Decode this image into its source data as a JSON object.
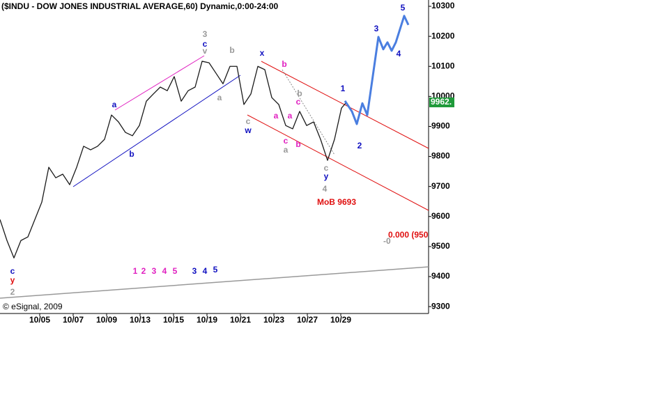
{
  "chart_data": {
    "type": "line",
    "title": "($INDU - DOW JONES INDUSTRIAL AVERAGE,60) Dynamic,0:00-24:00",
    "categories": [
      "10/05",
      "10/07",
      "10/09",
      "10/13",
      "10/15",
      "10/19",
      "10/21",
      "10/23",
      "10/27",
      "10/29"
    ],
    "xlim": [
      0,
      615
    ],
    "ylim": [
      9277,
      10321
    ],
    "yticks": [
      9300,
      9400,
      9500,
      9600,
      9700,
      9800,
      9900,
      10000,
      10100,
      10200,
      10300
    ],
    "series": [
      {
        "name": "$INDU",
        "color": "#1a1a1a",
        "x": [
          0,
          10,
          20,
          30,
          40,
          50,
          60,
          70,
          80,
          90,
          100,
          110,
          120,
          130,
          140,
          150,
          160,
          170,
          180,
          190,
          200,
          210,
          220,
          230,
          240,
          250,
          260,
          270,
          280,
          290,
          300,
          310,
          320,
          330,
          340,
          350,
          360,
          370,
          380,
          390,
          400,
          410,
          420,
          430,
          440,
          450,
          460,
          470,
          480,
          490,
          497
        ],
        "values": [
          9590,
          9520,
          9462,
          9520,
          9532,
          9590,
          9648,
          9764,
          9729,
          9741,
          9706,
          9764,
          9834,
          9822,
          9834,
          9857,
          9938,
          9915,
          9880,
          9869,
          9903,
          9984,
          10008,
          10031,
          10019,
          10066,
          9984,
          10019,
          10031,
          10117,
          10112,
          10077,
          10042,
          10100,
          10100,
          9973,
          10008,
          10100,
          10089,
          9996,
          9973,
          9903,
          9892,
          9950,
          9903,
          9915,
          9857,
          9787,
          9857,
          9961,
          9980
        ]
      },
      {
        "name": "Projection",
        "color": "#4a7ee0",
        "x": [
          495,
          505,
          512,
          520,
          527,
          543,
          550,
          556,
          562,
          568,
          580,
          586
        ],
        "values": [
          9985,
          9950,
          9908,
          9977,
          9938,
          10198,
          10157,
          10180,
          10152,
          10180,
          10268,
          10238
        ]
      }
    ],
    "last_price": "9962.",
    "annotations": [
      {
        "text": "3",
        "color": "#999999"
      },
      {
        "text": "c",
        "color": "#1010c0"
      },
      {
        "text": "v",
        "color": "#999999"
      },
      {
        "text": "b",
        "color": "#999999"
      },
      {
        "text": "x",
        "color": "#1010c0"
      },
      {
        "text": "b",
        "color": "#e020c0"
      },
      {
        "text": "a",
        "color": "#1010c0"
      },
      {
        "text": "b",
        "color": "#1010c0"
      },
      {
        "text": "a",
        "color": "#999999"
      },
      {
        "text": "b",
        "color": "#999999"
      },
      {
        "text": "c",
        "color": "#e020c0"
      },
      {
        "text": "a",
        "color": "#e020c0"
      },
      {
        "text": "a",
        "color": "#e020c0"
      },
      {
        "text": "c",
        "color": "#999999"
      },
      {
        "text": "w",
        "color": "#1010c0"
      },
      {
        "text": "c",
        "color": "#e020c0"
      },
      {
        "text": "b",
        "color": "#e020c0"
      },
      {
        "text": "a",
        "color": "#999999"
      },
      {
        "text": "c",
        "color": "#999999"
      },
      {
        "text": "y",
        "color": "#1010c0"
      },
      {
        "text": "4",
        "color": "#999999"
      },
      {
        "text": "MoB 9693",
        "color": "#e01010"
      },
      {
        "text": "1",
        "color": "#1010c0"
      },
      {
        "text": "2",
        "color": "#1010c0"
      },
      {
        "text": "3",
        "color": "#1010c0"
      },
      {
        "text": "4",
        "color": "#1010c0"
      },
      {
        "text": "5",
        "color": "#1010c0"
      },
      {
        "text": "1",
        "color": "#e020c0"
      },
      {
        "text": "2",
        "color": "#e020c0"
      },
      {
        "text": "3",
        "color": "#e020c0"
      },
      {
        "text": "4",
        "color": "#e020c0"
      },
      {
        "text": "5",
        "color": "#e020c0"
      },
      {
        "text": "3",
        "color": "#1010c0"
      },
      {
        "text": "4",
        "color": "#1010c0"
      },
      {
        "text": "5",
        "color": "#1010c0"
      },
      {
        "text": "c",
        "color": "#1010c0"
      },
      {
        "text": "y",
        "color": "#e01010"
      },
      {
        "text": "2",
        "color": "#999999"
      },
      {
        "text": "© eSignal, 2009",
        "color": "#000000"
      },
      {
        "text": "-0",
        "color": "#999999"
      },
      {
        "text": "0.000 (950",
        "color": "#e01010"
      }
    ]
  }
}
